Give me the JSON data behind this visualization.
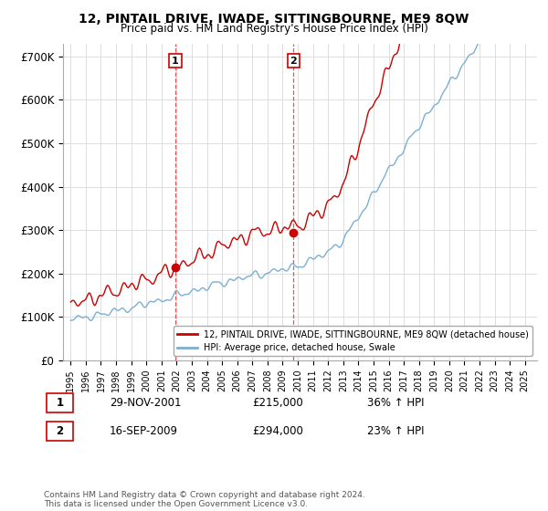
{
  "title": "12, PINTAIL DRIVE, IWADE, SITTINGBOURNE, ME9 8QW",
  "subtitle": "Price paid vs. HM Land Registry's House Price Index (HPI)",
  "red_legend": "12, PINTAIL DRIVE, IWADE, SITTINGBOURNE, ME9 8QW (detached house)",
  "blue_legend": "HPI: Average price, detached house, Swale",
  "transaction1_label": "1",
  "transaction1_date": "29-NOV-2001",
  "transaction1_price": "£215,000",
  "transaction1_hpi": "36% ↑ HPI",
  "transaction2_label": "2",
  "transaction2_date": "16-SEP-2009",
  "transaction2_price": "£294,000",
  "transaction2_hpi": "23% ↑ HPI",
  "footnote": "Contains HM Land Registry data © Crown copyright and database right 2024.\nThis data is licensed under the Open Government Licence v3.0.",
  "ylim": [
    0,
    730000
  ],
  "yticks": [
    0,
    100000,
    200000,
    300000,
    400000,
    500000,
    600000,
    700000
  ],
  "ytick_labels": [
    "£0",
    "£100K",
    "£200K",
    "£300K",
    "£400K",
    "£500K",
    "£600K",
    "£700K"
  ],
  "vline1_x": 2001.92,
  "vline2_x": 2009.71,
  "marker1_x": 2001.92,
  "marker1_y": 215000,
  "marker2_x": 2009.71,
  "marker2_y": 294000,
  "red_color": "#cc0000",
  "blue_color": "#7bafd4",
  "vline_color": "#cc0000",
  "background_color": "#ffffff",
  "grid_color": "#dddddd",
  "xlim_left": 1994.5,
  "xlim_right": 2025.8
}
